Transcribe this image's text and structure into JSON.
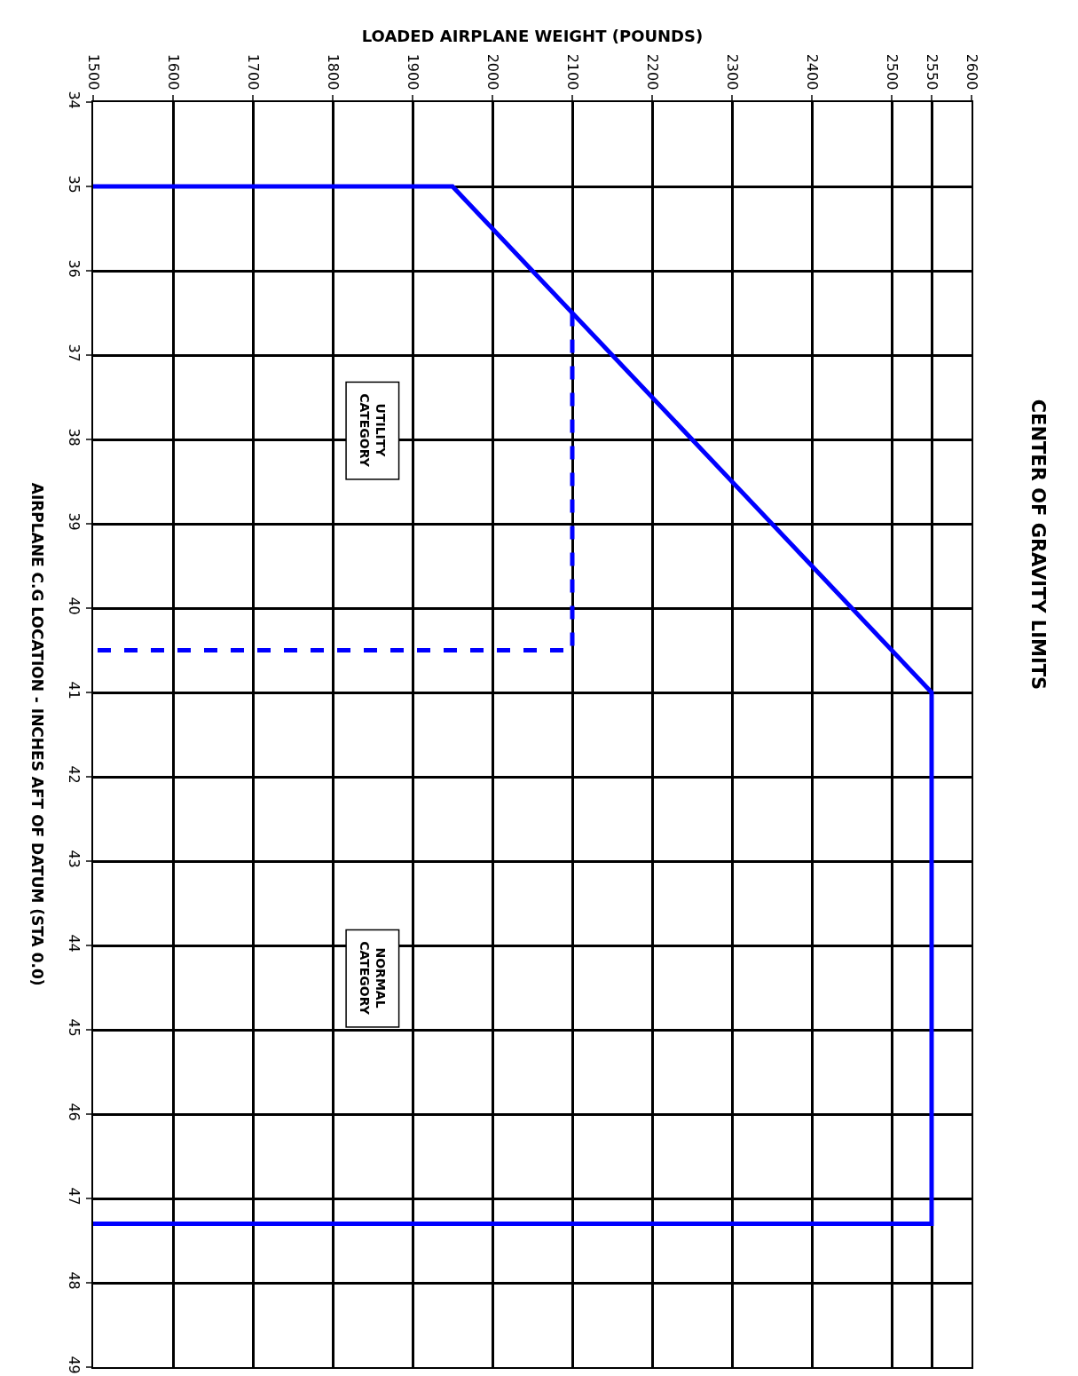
{
  "chart_data": {
    "type": "line",
    "title": "CENTER OF GRAVITY LIMITS",
    "xlabel": "LOADED AIRPLANE WEIGHT (POUNDS)",
    "ylabel": "AIRPLANE C.G LOCATION - INCHES AFT OF DATUM (STA 0.0)",
    "series": [
      {
        "color": "#0000ff",
        "line_style": "solid",
        "x": [
          1500,
          1950,
          2550,
          2550,
          1500
        ],
        "values": [
          35,
          35,
          41,
          47.3,
          47.3
        ]
      },
      {
        "color": "#0000ff",
        "line_style": "dashed",
        "x": [
          2100,
          2100,
          1500
        ],
        "values": [
          36.5,
          40.5,
          40.5
        ]
      }
    ],
    "xlim": [
      1500,
      2600
    ],
    "xticks": [
      1500,
      1600,
      1700,
      1800,
      1900,
      2000,
      2100,
      2200,
      2300,
      2400,
      2500,
      2550,
      2600
    ],
    "ylim": [
      49,
      34
    ],
    "yticks": [
      34,
      35,
      36,
      37,
      38,
      39,
      40,
      41,
      42,
      43,
      44,
      45,
      46,
      47,
      48,
      49
    ],
    "annotations": [
      "UTILITY CATEGORY",
      "NORMAL CATEGORY"
    ],
    "grid": true,
    "marker": "none"
  }
}
